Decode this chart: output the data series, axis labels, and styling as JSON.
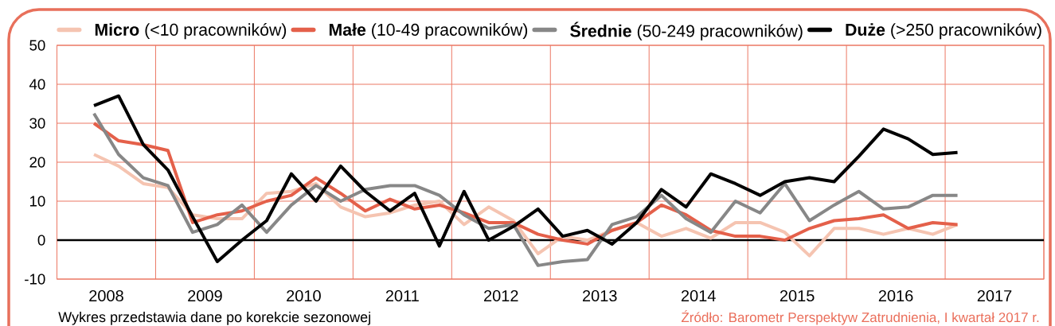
{
  "chart_data": {
    "type": "line",
    "x": [
      2008.375,
      2008.625,
      2008.875,
      2009.125,
      2009.375,
      2009.625,
      2009.875,
      2010.125,
      2010.375,
      2010.625,
      2010.875,
      2011.125,
      2011.375,
      2011.625,
      2011.875,
      2012.125,
      2012.375,
      2012.625,
      2012.875,
      2013.125,
      2013.375,
      2013.625,
      2013.875,
      2014.125,
      2014.375,
      2014.625,
      2014.875,
      2015.125,
      2015.375,
      2015.625,
      2015.875,
      2016.125,
      2016.375,
      2016.625,
      2016.875,
      2017.125
    ],
    "xlim": [
      2008,
      2018
    ],
    "xticks": [
      {
        "value": 2008,
        "label": null
      },
      {
        "value": 2008.5,
        "label": "2008"
      },
      {
        "value": 2009,
        "label": null
      },
      {
        "value": 2009.5,
        "label": "2009"
      },
      {
        "value": 2010,
        "label": null
      },
      {
        "value": 2010.5,
        "label": "2010"
      },
      {
        "value": 2011,
        "label": null
      },
      {
        "value": 2011.5,
        "label": "2011"
      },
      {
        "value": 2012,
        "label": null
      },
      {
        "value": 2012.5,
        "label": "2012"
      },
      {
        "value": 2013,
        "label": null
      },
      {
        "value": 2013.5,
        "label": "2013"
      },
      {
        "value": 2014,
        "label": null
      },
      {
        "value": 2014.5,
        "label": "2014"
      },
      {
        "value": 2015,
        "label": null
      },
      {
        "value": 2015.5,
        "label": "2015"
      },
      {
        "value": 2016,
        "label": null
      },
      {
        "value": 2016.5,
        "label": "2016"
      },
      {
        "value": 2017,
        "label": null
      },
      {
        "value": 2017.5,
        "label": "2017"
      },
      {
        "value": 2018,
        "label": null
      }
    ],
    "ylim": [
      -10,
      50
    ],
    "yticks": [
      -10,
      0,
      10,
      20,
      30,
      40,
      50
    ],
    "grid": true,
    "legend": "top",
    "series": [
      {
        "name": "**Micro** (<10 pracowników)",
        "color": "#f5c4b1",
        "values": [
          22,
          19,
          14.5,
          13.5,
          6.5,
          5.5,
          5.5,
          12,
          12.5,
          14.5,
          8.5,
          6,
          7,
          9,
          10,
          4,
          8.5,
          5,
          -3.5,
          1,
          0,
          2.5,
          4.5,
          1,
          3,
          0.5,
          4.5,
          4.5,
          2,
          -4,
          3,
          3,
          1.5,
          3,
          1.5,
          4
        ]
      },
      {
        "name": "**Małe** (10-49 pracowników)",
        "color": "#e4604a",
        "values": [
          30,
          25.5,
          24.5,
          23,
          4.5,
          6.5,
          7.5,
          10,
          11.5,
          16,
          12,
          7.5,
          10.5,
          8,
          9,
          7,
          4.5,
          4.5,
          1.5,
          0,
          -1,
          2.5,
          4.5,
          9,
          6.5,
          2.5,
          1,
          1,
          0,
          3,
          5,
          5.5,
          6.5,
          3,
          4.5,
          4
        ]
      },
      {
        "name": "**Średnie** (50-249 pracowników)",
        "color": "#878787",
        "values": [
          32.5,
          22,
          16,
          14,
          2,
          4,
          9,
          2,
          9,
          14,
          10,
          13,
          14,
          14,
          11.5,
          6.5,
          3,
          4,
          -6.5,
          -5.5,
          -5,
          4,
          6,
          11.5,
          5.5,
          2,
          10,
          7,
          14.5,
          5,
          9,
          12.5,
          8,
          8.5,
          11.5,
          11.5
        ]
      },
      {
        "name": "**Duże** (>250 pracowników)",
        "color": "#000000",
        "values": [
          34.5,
          37,
          24.5,
          18,
          6,
          -5.5,
          0,
          5,
          17,
          10,
          19,
          12.5,
          7.5,
          12,
          -1.5,
          12.5,
          0,
          3.5,
          8,
          1,
          2.5,
          -1,
          4.5,
          13,
          8.5,
          17,
          14.5,
          11.5,
          15,
          16,
          15,
          21.5,
          28.5,
          26,
          22,
          22.5
        ]
      }
    ],
    "ref_lines": [
      {
        "axis": "y",
        "value": 0,
        "color": "#000000"
      }
    ],
    "annotations": [
      "Wykres przedstawia dane po korekcie sezonowej",
      "Źródło: Barometr Perspektyw Zatrudnienia, I kwartał 2017 r."
    ]
  }
}
